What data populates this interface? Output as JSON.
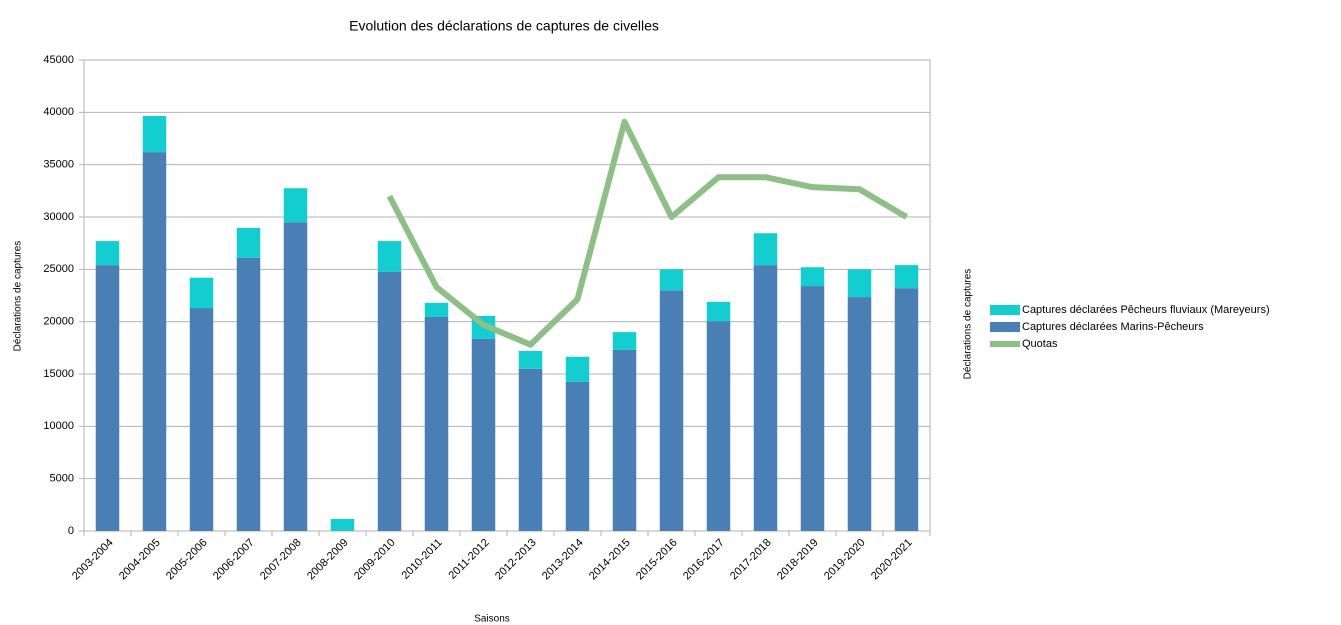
{
  "chart_data": {
    "type": "stacked_bar_line",
    "title": "Evolution des déclarations de captures de civelles",
    "xlabel": "Saisons",
    "ylabel": "Déclarations de captures",
    "y2label": "Déclarations de captures",
    "categories": [
      "2003-2004",
      "2004-2005",
      "2005-2006",
      "2006-2007",
      "2007-2008",
      "2008-2009",
      "2009-2010",
      "2010-2011",
      "2011-2012",
      "2012-2013",
      "2013-2014",
      "2014-2015",
      "2015-2016",
      "2016-2017",
      "2017-2018",
      "2018-2019",
      "2019-2020",
      "2020-2021"
    ],
    "series": [
      {
        "name": "Captures déclarées Pêcheurs fluviaux (Mareyeurs)",
        "color": "#14cdd0",
        "kind": "bar",
        "values": [
          2300,
          3450,
          2900,
          2850,
          3250,
          1150,
          2950,
          1350,
          2200,
          1700,
          2400,
          1700,
          2000,
          1850,
          3050,
          1800,
          2650,
          2200
        ]
      },
      {
        "name": "Captures déclarées Marins-Pêcheurs",
        "color": "#4a7fb5",
        "kind": "bar",
        "values": [
          25400,
          36200,
          21300,
          26100,
          29500,
          0,
          24750,
          20450,
          18350,
          15500,
          14250,
          17300,
          23000,
          20050,
          25400,
          23400,
          22350,
          23200
        ]
      },
      {
        "name": "Quotas",
        "color": "#8dbf87",
        "kind": "line",
        "values": [
          null,
          null,
          null,
          null,
          null,
          null,
          32000,
          23300,
          19700,
          17800,
          22150,
          39100,
          30000,
          33800,
          33800,
          32850,
          32650,
          30000
        ]
      }
    ],
    "ylim": [
      0,
      45000
    ],
    "yticks": [
      0,
      5000,
      10000,
      15000,
      20000,
      25000,
      30000,
      35000,
      40000,
      45000
    ],
    "grid": true,
    "legend": "right"
  }
}
